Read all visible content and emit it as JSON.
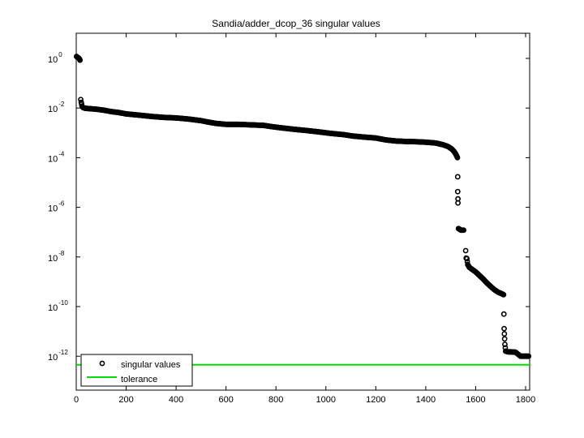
{
  "chart_data": {
    "type": "scatter",
    "title": "Sandia/adder_dcop_36 singular values",
    "xlabel": "",
    "ylabel": "",
    "yscale": "log",
    "xlim": [
      0,
      1818
    ],
    "ylim_log10": [
      1,
      -13.36
    ],
    "x_ticks": [
      0,
      200,
      400,
      600,
      800,
      1000,
      1200,
      1400,
      1600,
      1800
    ],
    "y_ticks": [
      {
        "base": "10",
        "exp": "0",
        "log": 0
      },
      {
        "base": "10",
        "exp": "-2",
        "log": -2
      },
      {
        "base": "10",
        "exp": "-4",
        "log": -4
      },
      {
        "base": "10",
        "exp": "-6",
        "log": -6
      },
      {
        "base": "10",
        "exp": "-8",
        "log": -8
      },
      {
        "base": "10",
        "exp": "-10",
        "log": -10
      },
      {
        "base": "10",
        "exp": "-12",
        "log": -12
      }
    ],
    "grid": false,
    "legend_position": "lower left",
    "legend": [
      {
        "label": "singular values",
        "marker": "circle",
        "color": "#000000"
      },
      {
        "label": "tolerance",
        "marker": "line",
        "color": "#00e000"
      }
    ],
    "series": [
      {
        "name": "singular values",
        "color": "#000000",
        "points": [
          [
            1,
            1.2
          ],
          [
            3,
            1.15
          ],
          [
            5,
            1.1
          ],
          [
            7,
            1.08
          ],
          [
            9,
            1.05
          ],
          [
            11,
            1.0
          ],
          [
            13,
            0.95
          ],
          [
            15,
            0.85
          ],
          [
            18,
            0.022
          ],
          [
            20,
            0.017
          ],
          [
            23,
            0.012
          ],
          [
            27,
            0.0105
          ],
          [
            35,
            0.0098
          ],
          [
            50,
            0.0095
          ],
          [
            80,
            0.009
          ],
          [
            110,
            0.0082
          ],
          [
            140,
            0.0072
          ],
          [
            170,
            0.0066
          ],
          [
            200,
            0.0058
          ],
          [
            250,
            0.0052
          ],
          [
            300,
            0.0046
          ],
          [
            350,
            0.0042
          ],
          [
            400,
            0.004
          ],
          [
            450,
            0.0036
          ],
          [
            500,
            0.0031
          ],
          [
            530,
            0.0027
          ],
          [
            560,
            0.0024
          ],
          [
            600,
            0.0022
          ],
          [
            650,
            0.0022
          ],
          [
            700,
            0.0021
          ],
          [
            750,
            0.002
          ],
          [
            780,
            0.0018
          ],
          [
            820,
            0.0016
          ],
          [
            870,
            0.0014
          ],
          [
            920,
            0.00125
          ],
          [
            970,
            0.0011
          ],
          [
            1020,
            0.00095
          ],
          [
            1070,
            0.00085
          ],
          [
            1110,
            0.00074
          ],
          [
            1150,
            0.00068
          ],
          [
            1200,
            0.00062
          ],
          [
            1240,
            0.00052
          ],
          [
            1280,
            0.00047
          ],
          [
            1320,
            0.00045
          ],
          [
            1360,
            0.00044
          ],
          [
            1400,
            0.00042
          ],
          [
            1440,
            0.00039
          ],
          [
            1470,
            0.00033
          ],
          [
            1490,
            0.00028
          ],
          [
            1505,
            0.00022
          ],
          [
            1515,
            0.00017
          ],
          [
            1522,
            0.00013
          ],
          [
            1527,
            0.0001
          ],
          [
            1528,
            1.7e-05
          ],
          [
            1528,
            4.3e-06
          ],
          [
            1529,
            2.2e-06
          ],
          [
            1529,
            1.5e-06
          ],
          [
            1531,
            1.4e-07
          ],
          [
            1536,
            1.3e-07
          ],
          [
            1541,
            1.2e-07
          ],
          [
            1546,
            1.2e-07
          ],
          [
            1552,
            1.2e-07
          ],
          [
            1560,
            1.8e-08
          ],
          [
            1562,
            9e-09
          ],
          [
            1565,
            8.5e-09
          ],
          [
            1568,
            5e-09
          ],
          [
            1575,
            3.8e-09
          ],
          [
            1585,
            3.2e-09
          ],
          [
            1600,
            2.5e-09
          ],
          [
            1615,
            1.8e-09
          ],
          [
            1630,
            1.3e-09
          ],
          [
            1645,
            9e-10
          ],
          [
            1660,
            6.5e-10
          ],
          [
            1675,
            4.8e-10
          ],
          [
            1690,
            3.8e-10
          ],
          [
            1705,
            3.3e-10
          ],
          [
            1712,
            3e-10
          ],
          [
            1713,
            5e-11
          ],
          [
            1714,
            1.3e-11
          ],
          [
            1715,
            8e-12
          ],
          [
            1716,
            5e-12
          ],
          [
            1717,
            3e-12
          ],
          [
            1720,
            1.6e-12
          ],
          [
            1730,
            1.5e-12
          ],
          [
            1745,
            1.5e-12
          ],
          [
            1760,
            1.45e-12
          ],
          [
            1770,
            1.2e-12
          ],
          [
            1780,
            1e-12
          ],
          [
            1795,
            1e-12
          ],
          [
            1812,
            1e-12
          ]
        ]
      },
      {
        "name": "tolerance",
        "color": "#00e000",
        "value": 4.5e-13
      }
    ]
  }
}
